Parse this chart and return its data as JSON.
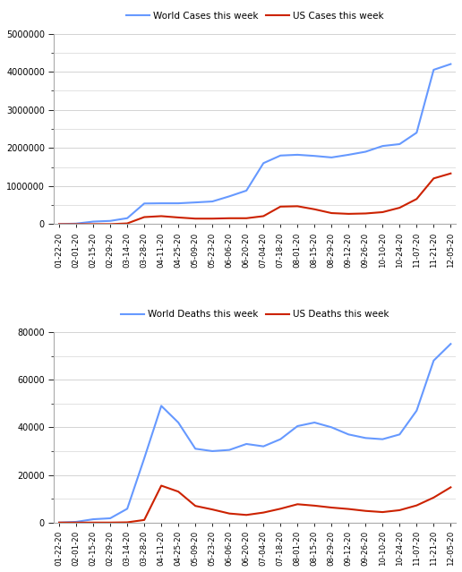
{
  "x_labels": [
    "01-22-20",
    "02-01-20",
    "02-15-20",
    "02-29-20",
    "03-14-20",
    "03-28-20",
    "04-11-20",
    "04-25-20",
    "05-09-20",
    "05-23-20",
    "06-06-20",
    "06-20-20",
    "07-04-20",
    "07-18-20",
    "08-01-20",
    "08-15-20",
    "08-29-20",
    "09-12-20",
    "09-26-20",
    "10-10-20",
    "10-24-20",
    "11-07-20",
    "11-21-20",
    "12-05-20"
  ],
  "world_cases": [
    400,
    14000,
    67000,
    85000,
    156000,
    542000,
    547000,
    547000,
    570000,
    595000,
    730000,
    880000,
    1600000,
    1800000,
    1820000,
    1790000,
    1750000,
    1820000,
    1900000,
    2050000,
    2100000,
    2400000,
    4050000,
    4200000
  ],
  "us_cases": [
    0,
    0,
    0,
    200,
    19000,
    185000,
    210000,
    175000,
    145000,
    145000,
    155000,
    155000,
    210000,
    460000,
    470000,
    390000,
    290000,
    270000,
    280000,
    315000,
    430000,
    660000,
    1200000,
    1330000
  ],
  "world_deaths": [
    10,
    300,
    1400,
    1800,
    5800,
    27000,
    49000,
    42000,
    31000,
    30000,
    30500,
    33000,
    32000,
    35000,
    40500,
    42000,
    40000,
    37000,
    35500,
    35000,
    37000,
    47000,
    68000,
    75000
  ],
  "us_deaths": [
    0,
    0,
    0,
    0,
    100,
    1100,
    15500,
    13000,
    7000,
    5500,
    3800,
    3200,
    4200,
    5800,
    7700,
    7100,
    6300,
    5700,
    4900,
    4400,
    5200,
    7200,
    10500,
    14800
  ],
  "world_color": "#6699ff",
  "us_color": "#cc2200",
  "cases_ylim": [
    0,
    5000000
  ],
  "cases_yticks": [
    0,
    1000000,
    2000000,
    3000000,
    4000000,
    5000000
  ],
  "deaths_ylim": [
    0,
    80000
  ],
  "deaths_yticks": [
    0,
    20000,
    40000,
    60000,
    80000
  ],
  "legend1_labels": [
    "World Cases this week",
    "US Cases this week"
  ],
  "legend2_labels": [
    "World Deaths this week",
    "US Deaths this week"
  ],
  "bg_color": "#ffffff",
  "plot_bg_color": "#ffffff",
  "grid_color": "#cccccc",
  "spine_color": "#aaaaaa"
}
